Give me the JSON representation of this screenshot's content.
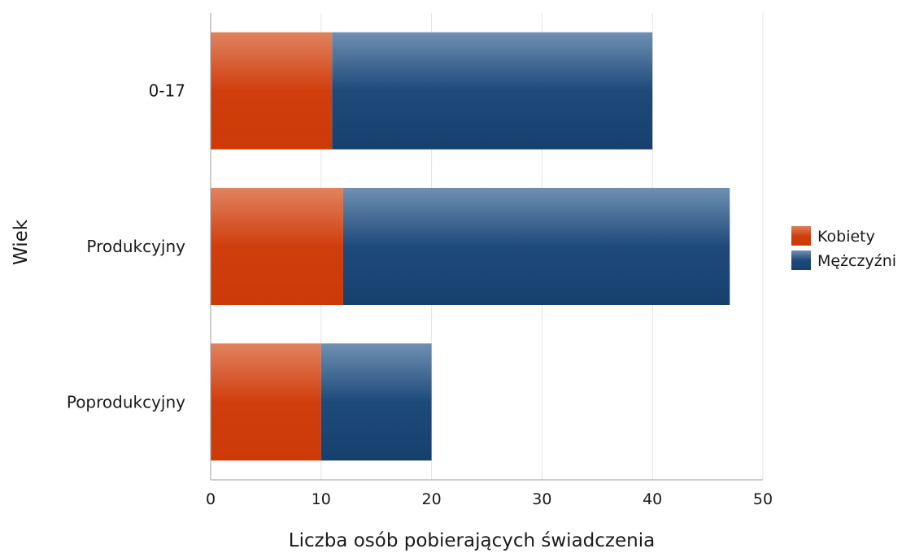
{
  "chart_data": {
    "type": "bar",
    "orientation": "horizontal",
    "stacked": true,
    "categories": [
      "0-17",
      "Produkcyjny",
      "Poprodukcyjny"
    ],
    "series": [
      {
        "name": "Kobiety",
        "values": [
          11,
          12,
          10
        ],
        "color": "#d13e0e"
      },
      {
        "name": "Mężczyźni",
        "values": [
          29,
          35,
          10
        ],
        "color": "#1e4a7a"
      }
    ],
    "title": "",
    "xlabel": "Liczba osób pobierających świadczenia",
    "ylabel": "Wiek",
    "xlim": [
      0,
      50
    ],
    "xticks": [
      "0",
      "10",
      "20",
      "30",
      "40",
      "50"
    ],
    "grid": "vertical",
    "legend_position": "right"
  }
}
